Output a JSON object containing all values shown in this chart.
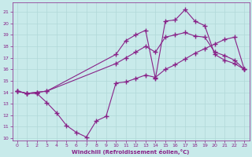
{
  "xlabel": "Windchill (Refroidissement éolien,°C)",
  "xlim": [
    -0.5,
    23.5
  ],
  "ylim": [
    9.8,
    21.8
  ],
  "yticks": [
    10,
    11,
    12,
    13,
    14,
    15,
    16,
    17,
    18,
    19,
    20,
    21
  ],
  "xticks": [
    0,
    1,
    2,
    3,
    4,
    5,
    6,
    7,
    8,
    9,
    10,
    11,
    12,
    13,
    14,
    15,
    16,
    17,
    18,
    19,
    20,
    21,
    22,
    23
  ],
  "bg_color": "#c8eaea",
  "grid_color": "#b0d8d8",
  "line_color": "#882288",
  "line1_x": [
    0,
    1,
    2,
    3,
    4,
    5,
    6,
    7,
    8,
    9,
    10,
    11,
    12,
    13,
    14,
    15,
    16,
    17,
    18,
    19,
    20,
    21,
    22,
    23
  ],
  "line1_y": [
    14.1,
    13.9,
    13.9,
    13.1,
    12.2,
    11.1,
    10.5,
    10.1,
    11.5,
    11.9,
    14.8,
    14.9,
    15.2,
    15.5,
    15.3,
    16.0,
    16.4,
    16.9,
    17.4,
    17.8,
    18.2,
    18.6,
    18.8,
    16.0
  ],
  "line2_x": [
    0,
    1,
    2,
    3,
    10,
    11,
    12,
    13,
    14,
    15,
    16,
    17,
    18,
    19,
    20,
    21,
    22,
    23
  ],
  "line2_y": [
    14.1,
    13.9,
    14.0,
    14.1,
    17.3,
    18.5,
    19.0,
    19.4,
    15.2,
    20.2,
    20.3,
    21.2,
    20.2,
    19.8,
    17.3,
    16.8,
    16.5,
    16.0
  ],
  "line3_x": [
    0,
    1,
    2,
    3,
    10,
    11,
    12,
    13,
    14,
    15,
    16,
    17,
    18,
    19,
    20,
    21,
    22,
    23
  ],
  "line3_y": [
    14.1,
    13.9,
    14.0,
    14.1,
    16.5,
    17.0,
    17.5,
    18.0,
    17.5,
    18.8,
    19.0,
    19.2,
    18.9,
    18.8,
    17.5,
    17.2,
    16.8,
    16.0
  ]
}
